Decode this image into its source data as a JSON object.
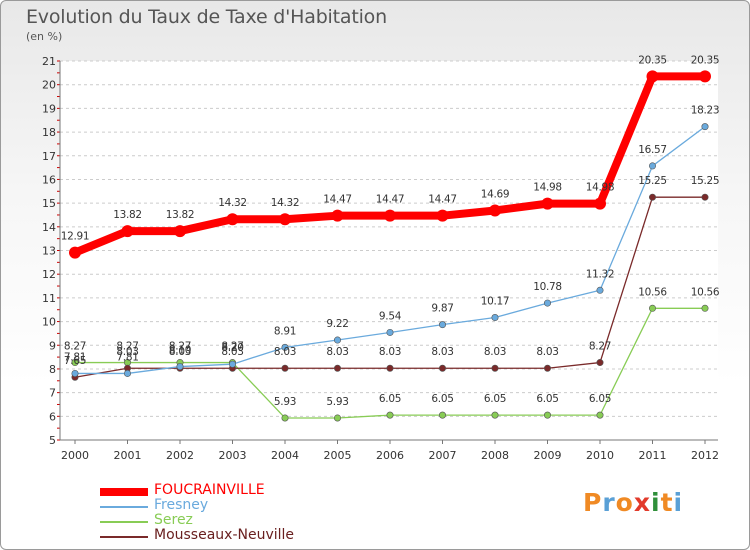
{
  "header": {
    "title": "Evolution du Taux de Taxe d'Habitation",
    "subtitle": "(en %)"
  },
  "logo": {
    "text": "Proxiti",
    "colors": [
      "#f08a24",
      "#5aa0d6",
      "#f08a24",
      "#e23a2b",
      "#2f8f3a",
      "#f08a24",
      "#5aa0d6"
    ]
  },
  "chart_data": {
    "type": "line",
    "title": "Evolution du Taux de Taxe d'Habitation",
    "ylabel": "(en %)",
    "xlabel": "",
    "ylim": [
      5,
      21
    ],
    "y_ticks": [
      5,
      6,
      7,
      8,
      9,
      10,
      11,
      12,
      13,
      14,
      15,
      16,
      17,
      18,
      19,
      20,
      21
    ],
    "grid": "horizontal dashed",
    "legend_position": "bottom-left",
    "x": [
      "2000",
      "2001",
      "2002",
      "2003",
      "2004",
      "2005",
      "2006",
      "2007",
      "2008",
      "2009",
      "2010",
      "2011",
      "2012"
    ],
    "series": [
      {
        "name": "FOUCRAINVILLE",
        "color": "#ff0000",
        "values": [
          12.91,
          13.82,
          13.82,
          14.32,
          14.32,
          14.47,
          14.47,
          14.47,
          14.69,
          14.98,
          14.98,
          20.35,
          20.35
        ],
        "labels": [
          "12.91",
          "13.82",
          "13.82",
          "14.32",
          "14.32",
          "14.47",
          "14.47",
          "14.47",
          "14.69",
          "14.98",
          "14.98",
          "20.35",
          "20.35"
        ]
      },
      {
        "name": "Fresney",
        "color": "#6aaadd",
        "values": [
          7.81,
          7.81,
          8.1,
          8.2,
          8.91,
          9.22,
          9.54,
          9.87,
          10.17,
          10.78,
          11.32,
          16.57,
          18.23
        ],
        "labels": [
          "7.81",
          "7.81",
          "8.10",
          "8.20",
          "8.91",
          "9.22",
          "9.54",
          "9.87",
          "10.17",
          "10.78",
          "11.32",
          "16.57",
          "18.23"
        ]
      },
      {
        "name": "Serez",
        "color": "#88cc55",
        "values": [
          8.27,
          8.27,
          8.27,
          8.27,
          5.93,
          5.93,
          6.05,
          6.05,
          6.05,
          6.05,
          6.05,
          10.56,
          10.56
        ],
        "labels": [
          "8.27",
          "8.27",
          "8.27",
          "8.27",
          "5.93",
          "5.93",
          "6.05",
          "6.05",
          "6.05",
          "6.05",
          "6.05",
          "10.56",
          "10.56"
        ]
      },
      {
        "name": "Mousseaux-Neuville",
        "color": "#7a2a2a",
        "values": [
          7.65,
          8.03,
          8.03,
          8.03,
          8.03,
          8.03,
          8.03,
          8.03,
          8.03,
          8.03,
          8.27,
          15.25,
          15.25
        ],
        "labels": [
          "7.65",
          "8.03",
          "8.03",
          "8.03",
          "8.03",
          "8.03",
          "8.03",
          "8.03",
          "8.03",
          "8.03",
          "8.27",
          "15.25",
          "15.25"
        ]
      }
    ]
  }
}
